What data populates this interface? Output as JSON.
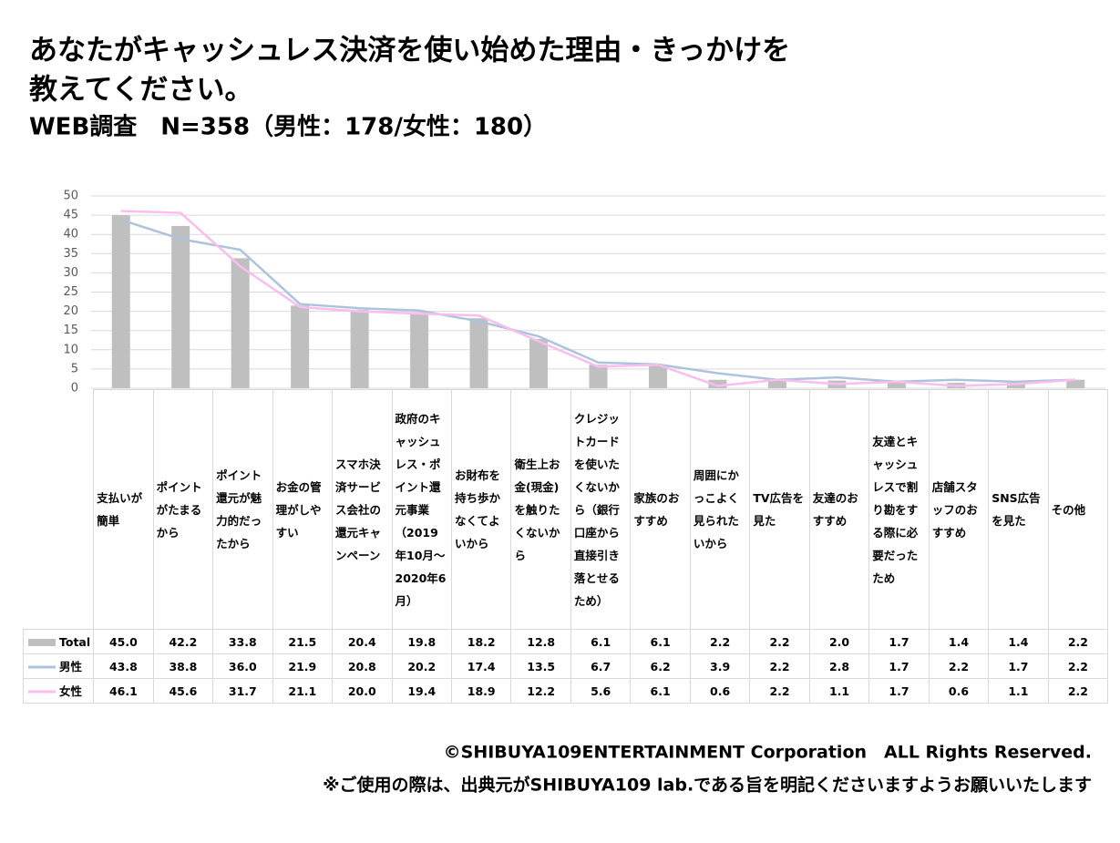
{
  "chart_data": {
    "type": "bar",
    "title_lines": [
      "あなたがキャッシュレス決済を使い始めた理由・きっかけを",
      "教えてください。"
    ],
    "subtitle": "WEB調査　N=358（男性：178/女性：180）",
    "categories": [
      "支払いが簡単",
      "ポイントがたまるから",
      "ポイント還元が魅力的だったから",
      "お金の管理がしやすい",
      "スマホ決済サービス会社の還元キャンペーン",
      "政府のキャッシュレス・ポイント還元事業（2019年10月～2020年6月）",
      "お財布を持ち歩かなくてよいから",
      "衛生上お金(現金)を触りたくないから",
      "クレジットカードを使いたくないから（銀行口座から直接引き落とせるため）",
      "家族のおすすめ",
      "周囲にかっこよく見られたいから",
      "TV広告を見た",
      "友達のおすすめ",
      "友達とキャッシュレスで割り勘をする際に必要だったため",
      "店舗スタッフのおすすめ",
      "SNS広告を見た",
      "その他"
    ],
    "series": [
      {
        "name": "Total",
        "type": "bar",
        "color": "#bfbfbf",
        "values": [
          45.0,
          42.2,
          33.8,
          21.5,
          20.4,
          19.8,
          18.2,
          12.8,
          6.1,
          6.1,
          2.2,
          2.2,
          2.0,
          1.7,
          1.4,
          1.4,
          2.2
        ],
        "value_labels": [
          "45.0",
          "42.2",
          "33.8",
          "21.5",
          "20.4",
          "19.8",
          "18.2",
          "12.8",
          "6.1",
          "6.1",
          "2.2",
          "2.2",
          "2.0",
          "1.7",
          "1.4",
          "1.4",
          "2.2"
        ]
      },
      {
        "name": "男性",
        "type": "line",
        "color": "#adc3dc",
        "values": [
          43.8,
          38.8,
          36.0,
          21.9,
          20.8,
          20.2,
          17.4,
          13.5,
          6.7,
          6.2,
          3.9,
          2.2,
          2.8,
          1.7,
          2.2,
          1.7,
          2.2
        ],
        "value_labels": [
          "43.8",
          "38.8",
          "36.0",
          "21.9",
          "20.8",
          "20.2",
          "17.4",
          "13.5",
          "6.7",
          "6.2",
          "3.9",
          "2.2",
          "2.8",
          "1.7",
          "2.2",
          "1.7",
          "2.2"
        ]
      },
      {
        "name": "女性",
        "type": "line",
        "color": "#f9bdf0",
        "values": [
          46.1,
          45.6,
          31.7,
          21.1,
          20.0,
          19.4,
          18.9,
          12.2,
          5.6,
          6.1,
          0.6,
          2.2,
          1.1,
          1.7,
          0.6,
          1.1,
          2.2
        ],
        "value_labels": [
          "46.1",
          "45.6",
          "31.7",
          "21.1",
          "20.0",
          "19.4",
          "18.9",
          "12.2",
          "5.6",
          "6.1",
          "0.6",
          "2.2",
          "1.1",
          "1.7",
          "0.6",
          "1.1",
          "2.2"
        ]
      }
    ],
    "ylim": [
      0,
      50
    ],
    "yticks": [
      0,
      5,
      10,
      15,
      20,
      25,
      30,
      35,
      40,
      45,
      50
    ],
    "grid": true,
    "footer": [
      "©SHIBUYA109ENTERTAINMENT Corporation　ALL Rights Reserved.",
      "※ご使用の際は、出典元がSHIBUYA109 lab.である旨を明記くださいますようお願いいたします"
    ]
  }
}
